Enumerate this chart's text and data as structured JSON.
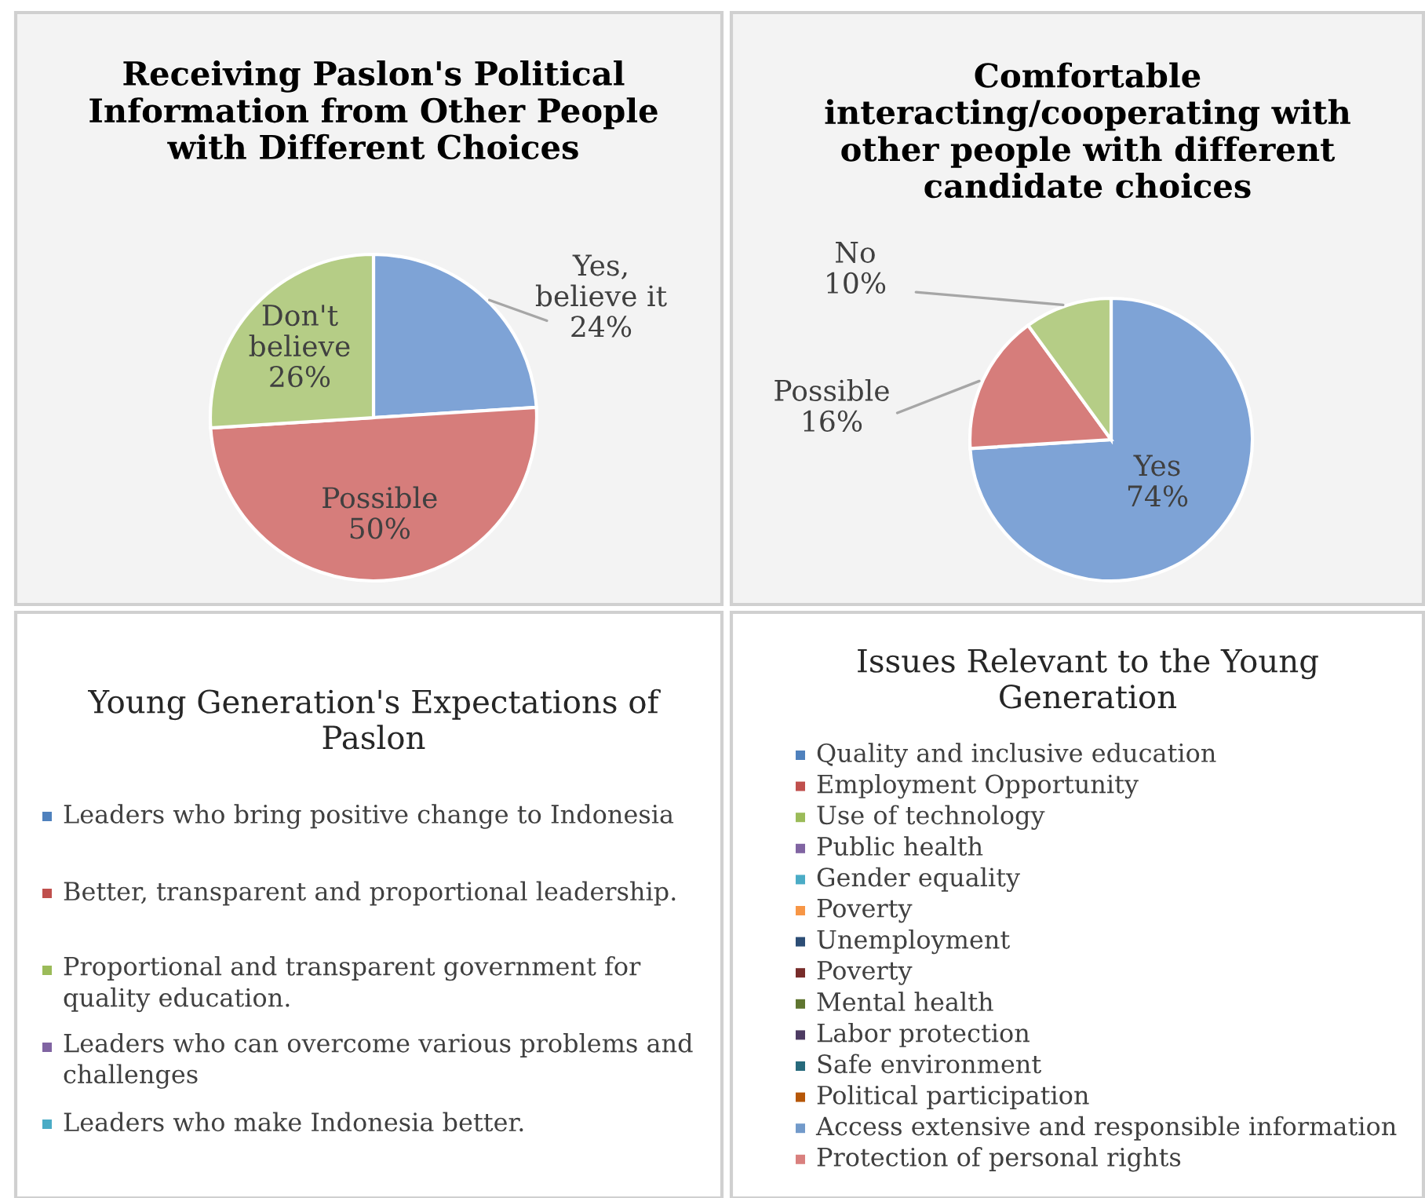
{
  "chart_data": [
    {
      "type": "pie",
      "title": "Receiving Paslon's Political Information from Other People with Different Choices",
      "categories": [
        "Yes, believe it",
        "Possible",
        "Don't believe"
      ],
      "values": [
        24,
        50,
        26
      ],
      "colors": [
        "#7ea3d6",
        "#d67d7b",
        "#b5cd86"
      ],
      "value_labels": [
        "24%",
        "50%",
        "26%"
      ],
      "legend": false
    },
    {
      "type": "pie",
      "title": "Comfortable interacting/cooperating with other people with different candidate choices",
      "categories": [
        "Yes",
        "Possible",
        "No"
      ],
      "values": [
        74,
        16,
        10
      ],
      "colors": [
        "#7ea3d6",
        "#d67d7b",
        "#b5cd86"
      ],
      "value_labels": [
        "74%",
        "16%",
        "10%"
      ],
      "legend": false
    },
    {
      "type": "other",
      "title": "Young Generation's Expectations of Paslon",
      "categories": [
        "Leaders who bring positive change to Indonesia",
        "Better, transparent and proportional leadership.",
        "Proportional and transparent government for quality education.",
        "Leaders who can overcome various problems and challenges",
        "Leaders who make Indonesia better."
      ],
      "colors": [
        "#4f81bd",
        "#c0504d",
        "#9bbb59",
        "#8064a2",
        "#4bacc6"
      ]
    },
    {
      "type": "other",
      "title": "Issues Relevant to the Young Generation",
      "categories": [
        "Quality and inclusive education",
        "Employment Opportunity",
        "Use of technology",
        "Public health",
        "Gender equality",
        "Poverty",
        "Unemployment",
        "Poverty",
        "Mental health",
        "Labor protection",
        "Safe environment",
        "Political participation",
        "Access extensive and responsible information",
        "Protection of personal rights"
      ],
      "colors": [
        "#4f81bd",
        "#c0504d",
        "#9bbb59",
        "#8064a2",
        "#4bacc6",
        "#f79646",
        "#2c4d75",
        "#772c2a",
        "#5f7530",
        "#4d3b62",
        "#276a7c",
        "#b65708",
        "#729aca",
        "#d9807e"
      ]
    }
  ]
}
